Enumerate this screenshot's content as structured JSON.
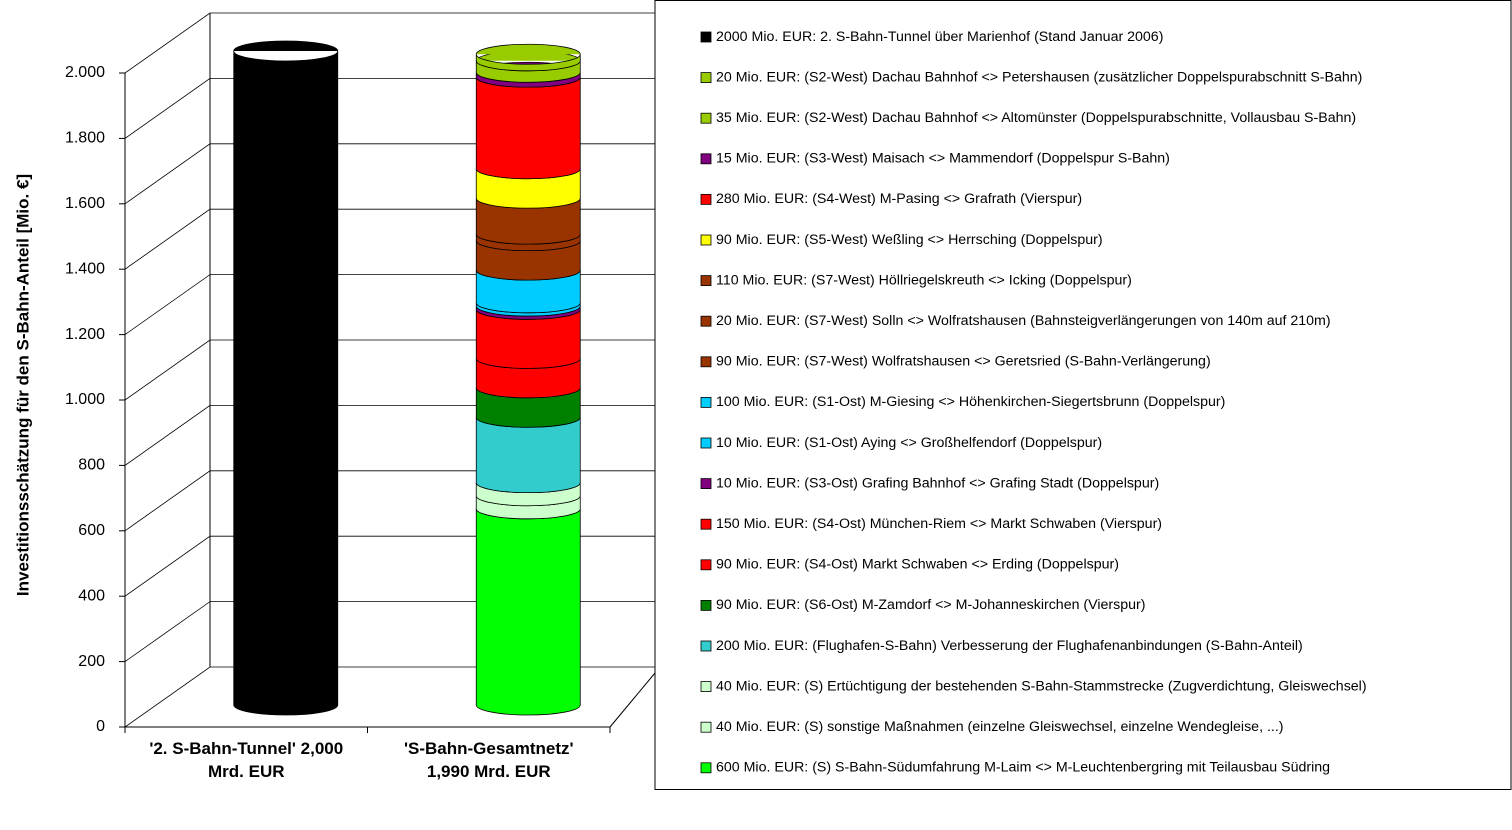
{
  "chart_data": {
    "type": "stacked-cylinder",
    "y_label": "Investitionsschätzung für den S-Bahn-Anteil [Mio. €]",
    "categories": [
      "'2. S-Bahn-Tunnel' 2,000 Mrd. EUR",
      "'S-Bahn-Gesamtnetz' 1,990 Mrd. EUR"
    ],
    "ylim": [
      0,
      2000
    ],
    "yticks": [
      0,
      200,
      400,
      600,
      800,
      {
        "value": 1000,
        "label": "1.000"
      },
      {
        "value": 1200,
        "label": "1.200"
      },
      {
        "value": 1400,
        "label": "1.400"
      },
      {
        "value": 1600,
        "label": "1.600"
      },
      {
        "value": 1800,
        "label": "1.800"
      },
      {
        "value": 2000,
        "label": "2.000"
      }
    ],
    "grid": true,
    "legend": "right",
    "series": [
      {
        "name": "2000 Mio. EUR: 2. S-Bahn-Tunnel über Marienhof (Stand Januar 2006)",
        "color": "#000000",
        "values": [
          2000,
          null
        ]
      },
      {
        "name": "20 Mio. EUR: (S2-West) Dachau Bahnhof <> Petershausen (zusätzlicher Doppelspurabschnitt S-Bahn)",
        "color": "#99cc00",
        "values": [
          null,
          20
        ]
      },
      {
        "name": "35 Mio. EUR: (S2-West) Dachau Bahnhof <> Altomünster (Doppelspurabschnitte, Vollausbau S-Bahn)",
        "color": "#99cc00",
        "values": [
          null,
          35
        ]
      },
      {
        "name": "15 Mio. EUR: (S3-West) Maisach <> Mammendorf (Doppelspur S-Bahn)",
        "color": "#800080",
        "values": [
          null,
          15
        ]
      },
      {
        "name": "280 Mio. EUR: (S4-West) M-Pasing <> Grafrath (Vierspur)",
        "color": "#ff0000",
        "values": [
          null,
          280
        ]
      },
      {
        "name": "90 Mio. EUR: (S5-West) Weßling <> Herrsching (Doppelspur)",
        "color": "#ffff00",
        "values": [
          null,
          90
        ]
      },
      {
        "name": "110 Mio. EUR: (S7-West) Höllriegelskreuth <> Icking (Doppelspur)",
        "color": "#993300",
        "values": [
          null,
          110
        ]
      },
      {
        "name": "20 Mio. EUR: (S7-West) Solln <> Wolfratshausen (Bahnsteigverlängerungen von 140m auf 210m)",
        "color": "#993300",
        "values": [
          null,
          20
        ]
      },
      {
        "name": "90 Mio. EUR: (S7-West) Wolfratshausen <> Geretsried (S-Bahn-Verlängerung)",
        "color": "#993300",
        "values": [
          null,
          90
        ]
      },
      {
        "name": "100 Mio. EUR: (S1-Ost) M-Giesing <> Höhenkirchen-Siegertsbrunn (Doppelspur)",
        "color": "#00ccff",
        "values": [
          null,
          100
        ]
      },
      {
        "name": "10 Mio. EUR: (S1-Ost) Aying <> Großhelfendorf (Doppelspur)",
        "color": "#00ccff",
        "values": [
          null,
          10
        ]
      },
      {
        "name": "10 Mio. EUR: (S3-Ost) Grafing Bahnhof <> Grafing Stadt (Doppelspur)",
        "color": "#800080",
        "values": [
          null,
          10
        ]
      },
      {
        "name": "150 Mio. EUR: (S4-Ost) München-Riem <> Markt Schwaben (Vierspur)",
        "color": "#ff0000",
        "values": [
          null,
          150
        ]
      },
      {
        "name": "90 Mio. EUR: (S4-Ost) Markt Schwaben <> Erding (Doppelspur)",
        "color": "#ff0000",
        "values": [
          null,
          90
        ]
      },
      {
        "name": "90 Mio. EUR: (S6-Ost) M-Zamdorf <> M-Johanneskirchen (Vierspur)",
        "color": "#008000",
        "values": [
          null,
          90
        ]
      },
      {
        "name": "200 Mio. EUR: (Flughafen-S-Bahn) Verbesserung der Flughafenanbindungen (S-Bahn-Anteil)",
        "color": "#33cccc",
        "values": [
          null,
          200
        ]
      },
      {
        "name": "40 Mio. EUR: (S) Ertüchtigung der bestehenden S-Bahn-Stammstrecke (Zugverdichtung, Gleiswechsel)",
        "color": "#ccffcc",
        "values": [
          null,
          40
        ]
      },
      {
        "name": "40 Mio. EUR: (S) sonstige Maßnahmen (einzelne Gleiswechsel, einzelne Wendegleise, ...)",
        "color": "#ccffcc",
        "values": [
          null,
          40
        ]
      },
      {
        "name": "600 Mio. EUR: (S) S-Bahn-Südumfahrung M-Laim <> M-Leuchtenbergring mit Teilausbau Südring",
        "color": "#00ff00",
        "values": [
          null,
          600
        ]
      }
    ]
  }
}
